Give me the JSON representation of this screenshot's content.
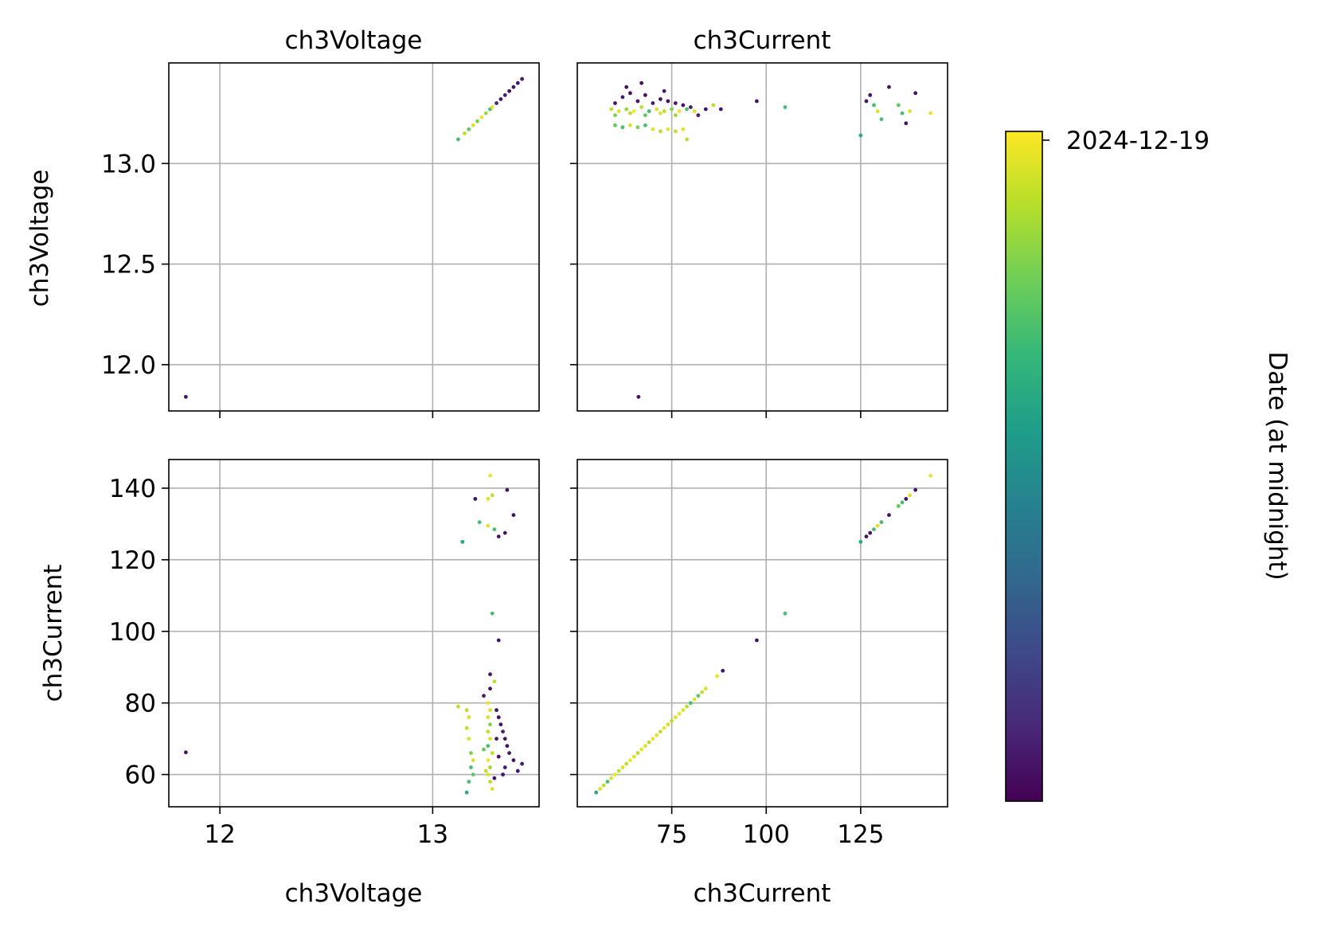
{
  "chart_data": {
    "type": "scatter",
    "layout": "pair-grid 2x2",
    "variables": [
      "ch3Voltage",
      "ch3Current"
    ],
    "grid": true,
    "colormap": "viridis",
    "colormap_stops": [
      "#440154",
      "#482878",
      "#3e4989",
      "#31688e",
      "#26828e",
      "#1f9e89",
      "#35b779",
      "#6ece58",
      "#b5de2b",
      "#fde725"
    ],
    "colorbar": {
      "label": "Date (at midnight)",
      "tick_labels": [
        "2024-12-19"
      ],
      "position": "right"
    },
    "panels": [
      {
        "row": "ch3Voltage",
        "col": "ch3Voltage",
        "title": "ch3Voltage",
        "xlabel": "",
        "ylabel": "ch3Voltage",
        "xlim": [
          11.76,
          13.5
        ],
        "ylim": [
          11.77,
          13.5
        ],
        "xticks": [
          12,
          13
        ],
        "xticklabels": [],
        "yticks": [
          12.0,
          12.5,
          13.0
        ],
        "yticklabels": [
          "12.0",
          "12.5",
          "13.0"
        ],
        "points": [
          {
            "x": 11.84,
            "y": 11.84,
            "c": 0.05
          },
          {
            "x": 13.12,
            "y": 13.12,
            "c": 0.7
          },
          {
            "x": 13.15,
            "y": 13.15,
            "c": 0.9
          },
          {
            "x": 13.17,
            "y": 13.17,
            "c": 0.75
          },
          {
            "x": 13.19,
            "y": 13.19,
            "c": 0.95
          },
          {
            "x": 13.21,
            "y": 13.21,
            "c": 0.8
          },
          {
            "x": 13.23,
            "y": 13.23,
            "c": 0.98
          },
          {
            "x": 13.25,
            "y": 13.25,
            "c": 0.85
          },
          {
            "x": 13.27,
            "y": 13.27,
            "c": 0.7
          },
          {
            "x": 13.28,
            "y": 13.28,
            "c": 0.97
          },
          {
            "x": 13.3,
            "y": 13.3,
            "c": 0.1
          },
          {
            "x": 13.32,
            "y": 13.32,
            "c": 0.05
          },
          {
            "x": 13.34,
            "y": 13.34,
            "c": 0.08
          },
          {
            "x": 13.36,
            "y": 13.36,
            "c": 0.04
          },
          {
            "x": 13.38,
            "y": 13.38,
            "c": 0.06
          },
          {
            "x": 13.4,
            "y": 13.4,
            "c": 0.05
          },
          {
            "x": 13.42,
            "y": 13.42,
            "c": 0.07
          }
        ]
      },
      {
        "row": "ch3Voltage",
        "col": "ch3Current",
        "title": "ch3Current",
        "xlabel": "",
        "ylabel": "",
        "xlim": [
          50,
          148
        ],
        "ylim": [
          11.77,
          13.5
        ],
        "xticks": [
          75,
          100,
          125
        ],
        "xticklabels": [],
        "yticks": [
          12.0,
          12.5,
          13.0
        ],
        "yticklabels": [],
        "points": [
          {
            "x": 66.2,
            "y": 11.84,
            "c": 0.05
          },
          {
            "x": 59,
            "y": 13.27,
            "c": 0.9
          },
          {
            "x": 61,
            "y": 13.26,
            "c": 0.95
          },
          {
            "x": 63,
            "y": 13.27,
            "c": 0.85
          },
          {
            "x": 65,
            "y": 13.26,
            "c": 0.98
          },
          {
            "x": 67,
            "y": 13.28,
            "c": 0.9
          },
          {
            "x": 69,
            "y": 13.26,
            "c": 0.7
          },
          {
            "x": 71,
            "y": 13.27,
            "c": 0.95
          },
          {
            "x": 73,
            "y": 13.26,
            "c": 0.9
          },
          {
            "x": 75,
            "y": 13.27,
            "c": 0.8
          },
          {
            "x": 77,
            "y": 13.26,
            "c": 0.97
          },
          {
            "x": 79,
            "y": 13.27,
            "c": 0.7
          },
          {
            "x": 81,
            "y": 13.26,
            "c": 0.95
          },
          {
            "x": 60,
            "y": 13.24,
            "c": 0.8
          },
          {
            "x": 64,
            "y": 13.25,
            "c": 0.9
          },
          {
            "x": 68,
            "y": 13.24,
            "c": 0.75
          },
          {
            "x": 72,
            "y": 13.25,
            "c": 0.95
          },
          {
            "x": 76,
            "y": 13.24,
            "c": 0.85
          },
          {
            "x": 60,
            "y": 13.3,
            "c": 0.05
          },
          {
            "x": 62,
            "y": 13.33,
            "c": 0.08
          },
          {
            "x": 64,
            "y": 13.35,
            "c": 0.04
          },
          {
            "x": 66,
            "y": 13.31,
            "c": 0.06
          },
          {
            "x": 68,
            "y": 13.34,
            "c": 0.05
          },
          {
            "x": 70,
            "y": 13.3,
            "c": 0.07
          },
          {
            "x": 72,
            "y": 13.32,
            "c": 0.05
          },
          {
            "x": 74,
            "y": 13.31,
            "c": 0.04
          },
          {
            "x": 76,
            "y": 13.3,
            "c": 0.06
          },
          {
            "x": 78,
            "y": 13.29,
            "c": 0.05
          },
          {
            "x": 80,
            "y": 13.28,
            "c": 0.08
          },
          {
            "x": 84,
            "y": 13.27,
            "c": 0.05
          },
          {
            "x": 63,
            "y": 13.38,
            "c": 0.05
          },
          {
            "x": 67,
            "y": 13.4,
            "c": 0.04
          },
          {
            "x": 73,
            "y": 13.36,
            "c": 0.06
          },
          {
            "x": 82,
            "y": 13.24,
            "c": 0.07
          },
          {
            "x": 86,
            "y": 13.29,
            "c": 0.9
          },
          {
            "x": 88,
            "y": 13.27,
            "c": 0.05
          },
          {
            "x": 60,
            "y": 13.19,
            "c": 0.75
          },
          {
            "x": 62,
            "y": 13.18,
            "c": 0.7
          },
          {
            "x": 64,
            "y": 13.19,
            "c": 0.95
          },
          {
            "x": 66,
            "y": 13.18,
            "c": 0.8
          },
          {
            "x": 68,
            "y": 13.19,
            "c": 0.7
          },
          {
            "x": 70,
            "y": 13.17,
            "c": 0.95
          },
          {
            "x": 72,
            "y": 13.16,
            "c": 0.9
          },
          {
            "x": 74,
            "y": 13.17,
            "c": 0.97
          },
          {
            "x": 76,
            "y": 13.16,
            "c": 0.9
          },
          {
            "x": 78,
            "y": 13.17,
            "c": 0.95
          },
          {
            "x": 79,
            "y": 13.12,
            "c": 0.9
          },
          {
            "x": 97.5,
            "y": 13.31,
            "c": 0.05
          },
          {
            "x": 105,
            "y": 13.28,
            "c": 0.7
          },
          {
            "x": 125,
            "y": 13.14,
            "c": 0.6
          },
          {
            "x": 126.5,
            "y": 13.31,
            "c": 0.06
          },
          {
            "x": 127.5,
            "y": 13.34,
            "c": 0.05
          },
          {
            "x": 128.5,
            "y": 13.29,
            "c": 0.7
          },
          {
            "x": 129.5,
            "y": 13.26,
            "c": 0.95
          },
          {
            "x": 130.5,
            "y": 13.22,
            "c": 0.7
          },
          {
            "x": 132.5,
            "y": 13.38,
            "c": 0.05
          },
          {
            "x": 135,
            "y": 13.29,
            "c": 0.75
          },
          {
            "x": 136,
            "y": 13.25,
            "c": 0.7
          },
          {
            "x": 137,
            "y": 13.2,
            "c": 0.05
          },
          {
            "x": 138,
            "y": 13.26,
            "c": 0.95
          },
          {
            "x": 139.5,
            "y": 13.35,
            "c": 0.05
          },
          {
            "x": 143.5,
            "y": 13.25,
            "c": 0.97
          }
        ]
      },
      {
        "row": "ch3Current",
        "col": "ch3Voltage",
        "title": "",
        "xlabel": "ch3Voltage",
        "ylabel": "ch3Current",
        "xlim": [
          11.76,
          13.5
        ],
        "ylim": [
          51,
          148
        ],
        "xticks": [
          12,
          13
        ],
        "xticklabels": [
          "12",
          "13"
        ],
        "yticks": [
          60,
          80,
          100,
          120,
          140
        ],
        "yticklabels": [
          "60",
          "80",
          "100",
          "120",
          "140"
        ],
        "points": [
          {
            "x": 11.84,
            "y": 66.2,
            "c": 0.05
          },
          {
            "x": 13.27,
            "y": 143.5,
            "c": 0.97
          },
          {
            "x": 13.26,
            "y": 137,
            "c": 0.95
          },
          {
            "x": 13.28,
            "y": 138,
            "c": 0.9
          },
          {
            "x": 13.2,
            "y": 137,
            "c": 0.05
          },
          {
            "x": 13.35,
            "y": 139.5,
            "c": 0.05
          },
          {
            "x": 13.38,
            "y": 132.5,
            "c": 0.05
          },
          {
            "x": 13.22,
            "y": 130.5,
            "c": 0.7
          },
          {
            "x": 13.26,
            "y": 129.5,
            "c": 0.95
          },
          {
            "x": 13.29,
            "y": 128.5,
            "c": 0.7
          },
          {
            "x": 13.34,
            "y": 127.5,
            "c": 0.05
          },
          {
            "x": 13.31,
            "y": 126.5,
            "c": 0.06
          },
          {
            "x": 13.14,
            "y": 125,
            "c": 0.6
          },
          {
            "x": 13.28,
            "y": 105,
            "c": 0.7
          },
          {
            "x": 13.31,
            "y": 97.5,
            "c": 0.05
          },
          {
            "x": 13.27,
            "y": 88,
            "c": 0.05
          },
          {
            "x": 13.29,
            "y": 86,
            "c": 0.9
          },
          {
            "x": 13.27,
            "y": 84,
            "c": 0.05
          },
          {
            "x": 13.24,
            "y": 82,
            "c": 0.07
          },
          {
            "x": 13.12,
            "y": 79,
            "c": 0.9
          },
          {
            "x": 13.16,
            "y": 78,
            "c": 0.9
          },
          {
            "x": 13.17,
            "y": 76,
            "c": 0.95
          },
          {
            "x": 13.16,
            "y": 73,
            "c": 0.9
          },
          {
            "x": 13.17,
            "y": 70,
            "c": 0.95
          },
          {
            "x": 13.18,
            "y": 66,
            "c": 0.8
          },
          {
            "x": 13.19,
            "y": 64,
            "c": 0.95
          },
          {
            "x": 13.18,
            "y": 62,
            "c": 0.7
          },
          {
            "x": 13.19,
            "y": 60,
            "c": 0.75
          },
          {
            "x": 13.17,
            "y": 58,
            "c": 0.7
          },
          {
            "x": 13.16,
            "y": 55,
            "c": 0.6
          },
          {
            "x": 13.26,
            "y": 80,
            "c": 0.97
          },
          {
            "x": 13.27,
            "y": 78,
            "c": 0.95
          },
          {
            "x": 13.26,
            "y": 76,
            "c": 0.95
          },
          {
            "x": 13.27,
            "y": 74,
            "c": 0.8
          },
          {
            "x": 13.26,
            "y": 72,
            "c": 0.9
          },
          {
            "x": 13.27,
            "y": 70,
            "c": 0.95
          },
          {
            "x": 13.26,
            "y": 68,
            "c": 0.7
          },
          {
            "x": 13.28,
            "y": 66,
            "c": 0.9
          },
          {
            "x": 13.26,
            "y": 64,
            "c": 0.98
          },
          {
            "x": 13.27,
            "y": 62,
            "c": 0.85
          },
          {
            "x": 13.26,
            "y": 60,
            "c": 0.95
          },
          {
            "x": 13.27,
            "y": 58,
            "c": 0.9
          },
          {
            "x": 13.28,
            "y": 56,
            "c": 0.95
          },
          {
            "x": 13.25,
            "y": 61,
            "c": 0.9
          },
          {
            "x": 13.24,
            "y": 67,
            "c": 0.75
          },
          {
            "x": 13.3,
            "y": 78,
            "c": 0.05
          },
          {
            "x": 13.31,
            "y": 76,
            "c": 0.04
          },
          {
            "x": 13.32,
            "y": 74,
            "c": 0.05
          },
          {
            "x": 13.33,
            "y": 72,
            "c": 0.08
          },
          {
            "x": 13.34,
            "y": 70,
            "c": 0.05
          },
          {
            "x": 13.35,
            "y": 68,
            "c": 0.04
          },
          {
            "x": 13.36,
            "y": 66,
            "c": 0.06
          },
          {
            "x": 13.38,
            "y": 64,
            "c": 0.05
          },
          {
            "x": 13.34,
            "y": 62,
            "c": 0.07
          },
          {
            "x": 13.33,
            "y": 60,
            "c": 0.05
          },
          {
            "x": 13.31,
            "y": 65,
            "c": 0.05
          },
          {
            "x": 13.4,
            "y": 61,
            "c": 0.05
          },
          {
            "x": 13.42,
            "y": 63,
            "c": 0.07
          },
          {
            "x": 13.29,
            "y": 59,
            "c": 0.05
          },
          {
            "x": 13.3,
            "y": 70,
            "c": 0.06
          }
        ]
      },
      {
        "row": "ch3Current",
        "col": "ch3Current",
        "title": "",
        "xlabel": "ch3Current",
        "ylabel": "",
        "xlim": [
          50,
          148
        ],
        "ylim": [
          51,
          148
        ],
        "xticks": [
          75,
          100,
          125
        ],
        "xticklabels": [
          "75",
          "100",
          "125"
        ],
        "yticks": [
          60,
          80,
          100,
          120,
          140
        ],
        "yticklabels": [],
        "points": [
          {
            "x": 55,
            "y": 55,
            "c": 0.6
          },
          {
            "x": 56,
            "y": 56,
            "c": 0.95
          },
          {
            "x": 57,
            "y": 57,
            "c": 0.9
          },
          {
            "x": 58,
            "y": 58,
            "c": 0.7
          },
          {
            "x": 59,
            "y": 59,
            "c": 0.95
          },
          {
            "x": 60,
            "y": 60,
            "c": 0.97
          },
          {
            "x": 61,
            "y": 61,
            "c": 0.9
          },
          {
            "x": 62,
            "y": 62,
            "c": 0.95
          },
          {
            "x": 63,
            "y": 63,
            "c": 0.9
          },
          {
            "x": 64,
            "y": 64,
            "c": 0.98
          },
          {
            "x": 65,
            "y": 65,
            "c": 0.95
          },
          {
            "x": 66,
            "y": 66,
            "c": 0.9
          },
          {
            "x": 67,
            "y": 67,
            "c": 0.97
          },
          {
            "x": 68,
            "y": 68,
            "c": 0.95
          },
          {
            "x": 69,
            "y": 69,
            "c": 0.9
          },
          {
            "x": 70,
            "y": 70,
            "c": 0.98
          },
          {
            "x": 71,
            "y": 71,
            "c": 0.95
          },
          {
            "x": 72,
            "y": 72,
            "c": 0.9
          },
          {
            "x": 73,
            "y": 73,
            "c": 0.97
          },
          {
            "x": 74,
            "y": 74,
            "c": 0.95
          },
          {
            "x": 75,
            "y": 75,
            "c": 0.9
          },
          {
            "x": 76,
            "y": 76,
            "c": 0.95
          },
          {
            "x": 77,
            "y": 77,
            "c": 0.97
          },
          {
            "x": 78,
            "y": 78,
            "c": 0.95
          },
          {
            "x": 79,
            "y": 79,
            "c": 0.9
          },
          {
            "x": 80,
            "y": 80,
            "c": 0.7
          },
          {
            "x": 81,
            "y": 81,
            "c": 0.95
          },
          {
            "x": 82,
            "y": 82,
            "c": 0.75
          },
          {
            "x": 83,
            "y": 83,
            "c": 0.9
          },
          {
            "x": 84,
            "y": 84,
            "c": 0.95
          },
          {
            "x": 87,
            "y": 87.5,
            "c": 0.97
          },
          {
            "x": 88.5,
            "y": 89,
            "c": 0.05
          },
          {
            "x": 97.5,
            "y": 97.5,
            "c": 0.05
          },
          {
            "x": 105,
            "y": 105,
            "c": 0.7
          },
          {
            "x": 125,
            "y": 125,
            "c": 0.6
          },
          {
            "x": 126.5,
            "y": 126.5,
            "c": 0.06
          },
          {
            "x": 127.5,
            "y": 127.5,
            "c": 0.05
          },
          {
            "x": 128.5,
            "y": 128.5,
            "c": 0.7
          },
          {
            "x": 129.5,
            "y": 129.5,
            "c": 0.95
          },
          {
            "x": 130.5,
            "y": 130.5,
            "c": 0.7
          },
          {
            "x": 132.5,
            "y": 132.5,
            "c": 0.05
          },
          {
            "x": 135,
            "y": 135,
            "c": 0.75
          },
          {
            "x": 136,
            "y": 136,
            "c": 0.7
          },
          {
            "x": 137,
            "y": 137,
            "c": 0.05
          },
          {
            "x": 138,
            "y": 138,
            "c": 0.95
          },
          {
            "x": 139.5,
            "y": 139.5,
            "c": 0.05
          },
          {
            "x": 143.5,
            "y": 143.5,
            "c": 0.97
          }
        ]
      }
    ]
  }
}
